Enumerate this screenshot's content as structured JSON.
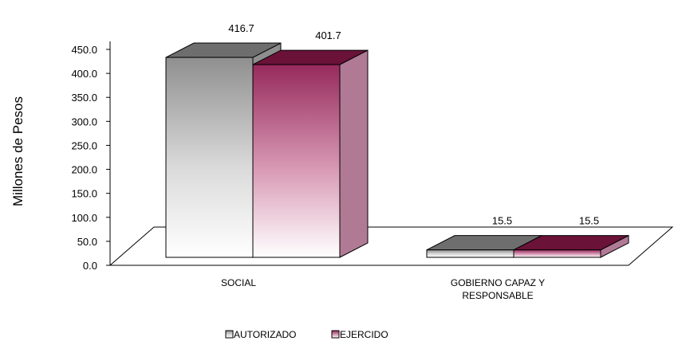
{
  "chart_data": {
    "type": "bar",
    "title": "",
    "xlabel": "",
    "ylabel": "Millones de Pesos",
    "ylim": [
      0,
      450
    ],
    "yticks": [
      "0.0",
      "50.0",
      "100.0",
      "150.0",
      "200.0",
      "250.0",
      "300.0",
      "350.0",
      "400.0",
      "450.0"
    ],
    "categories": [
      [
        "SOCIAL"
      ],
      [
        "GOBIERNO CAPAZ Y",
        "RESPONSABLE"
      ]
    ],
    "series": [
      {
        "name": "AUTORIZADO",
        "values": [
          416.7,
          15.5
        ],
        "labels": [
          "416.7",
          "15.5"
        ],
        "color": "#9a9a9a"
      },
      {
        "name": "EJERCIDO",
        "values": [
          401.7,
          15.5
        ],
        "labels": [
          "401.7",
          "15.5"
        ],
        "color": "#8b1a4a"
      }
    ],
    "grid": false,
    "legend_position": "bottom",
    "three_d": true
  }
}
